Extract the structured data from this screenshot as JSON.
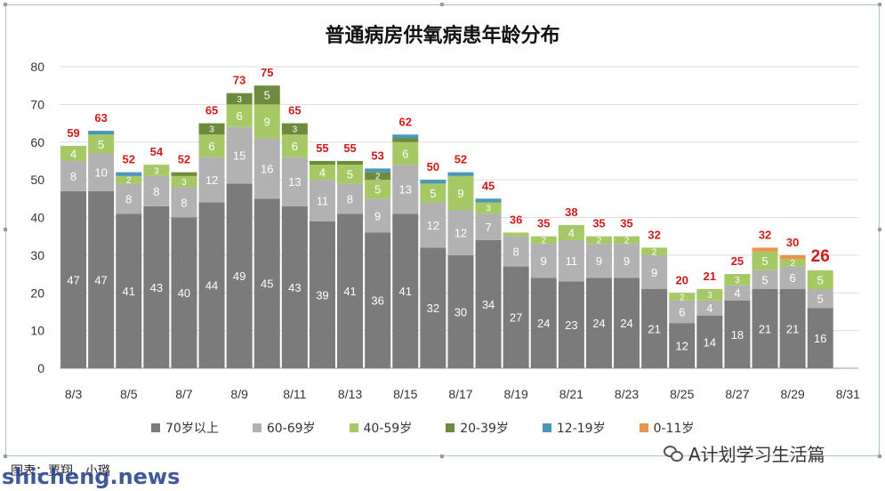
{
  "chart_data": {
    "type": "bar",
    "title": "普通病房供氧病患年龄分布",
    "stacked": true,
    "categories": [
      "8/3",
      "8/4",
      "8/5",
      "8/6",
      "8/7",
      "8/8",
      "8/9",
      "8/10",
      "8/11",
      "8/12",
      "8/13",
      "8/14",
      "8/15",
      "8/16",
      "8/17",
      "8/18",
      "8/19",
      "8/20",
      "8/21",
      "8/22",
      "8/23",
      "8/24",
      "8/25",
      "8/26",
      "8/27",
      "8/28",
      "8/29",
      "8/30"
    ],
    "xtick_labels": [
      "8/3",
      "8/5",
      "8/7",
      "8/9",
      "8/11",
      "8/13",
      "8/15",
      "8/17",
      "8/19",
      "8/21",
      "8/23",
      "8/25",
      "8/27",
      "8/29",
      "8/31"
    ],
    "ylim": [
      0,
      80
    ],
    "yticks": [
      0,
      10,
      20,
      30,
      40,
      50,
      60,
      70,
      80
    ],
    "grid": true,
    "legend_position": "bottom",
    "series": [
      {
        "name": "70岁以上",
        "color": "#7b7b7b",
        "values": [
          47,
          47,
          41,
          43,
          40,
          44,
          49,
          45,
          43,
          39,
          41,
          36,
          41,
          32,
          30,
          34,
          27,
          24,
          23,
          24,
          24,
          21,
          12,
          14,
          18,
          21,
          21,
          16
        ]
      },
      {
        "name": "60-69岁",
        "color": "#b2b2b2",
        "values": [
          8,
          10,
          8,
          8,
          8,
          12,
          15,
          16,
          13,
          11,
          8,
          9,
          13,
          12,
          12,
          7,
          8,
          9,
          11,
          9,
          9,
          9,
          6,
          4,
          4,
          5,
          6,
          5
        ]
      },
      {
        "name": "40-59岁",
        "color": "#a6c965",
        "values": [
          4,
          5,
          2,
          3,
          3,
          6,
          6,
          9,
          6,
          4,
          5,
          5,
          6,
          5,
          9,
          3,
          1,
          2,
          4,
          2,
          2,
          2,
          2,
          3,
          3,
          5,
          2,
          5
        ]
      },
      {
        "name": "20-39岁",
        "color": "#6e8b3d",
        "values": [
          0,
          0,
          0,
          0,
          1,
          3,
          3,
          5,
          3,
          1,
          1,
          2,
          1,
          0,
          0,
          0,
          0,
          0,
          0,
          0,
          0,
          0,
          0,
          0,
          0,
          0,
          0,
          0
        ]
      },
      {
        "name": "12-19岁",
        "color": "#4b97b6",
        "values": [
          0,
          1,
          1,
          0,
          0,
          0,
          0,
          0,
          0,
          0,
          0,
          1,
          1,
          1,
          1,
          1,
          0,
          0,
          0,
          0,
          0,
          0,
          0,
          0,
          0,
          0,
          0,
          0
        ]
      },
      {
        "name": "0-11岁",
        "color": "#e8944f",
        "values": [
          0,
          0,
          0,
          0,
          0,
          0,
          0,
          0,
          0,
          0,
          0,
          0,
          0,
          0,
          0,
          0,
          0,
          0,
          0,
          0,
          0,
          0,
          0,
          0,
          0,
          1,
          1,
          0
        ]
      }
    ],
    "totals": [
      59,
      63,
      52,
      54,
      52,
      65,
      73,
      75,
      65,
      55,
      55,
      53,
      62,
      50,
      52,
      45,
      36,
      35,
      38,
      35,
      35,
      32,
      20,
      21,
      25,
      32,
      30,
      26
    ],
    "total_label_color": "#d11a1a",
    "highlight_last_total": true
  },
  "caption": "图表：贾翔、小璐",
  "watermark_account": "A计划学习生活篇",
  "site_watermark": "shicheng.news"
}
